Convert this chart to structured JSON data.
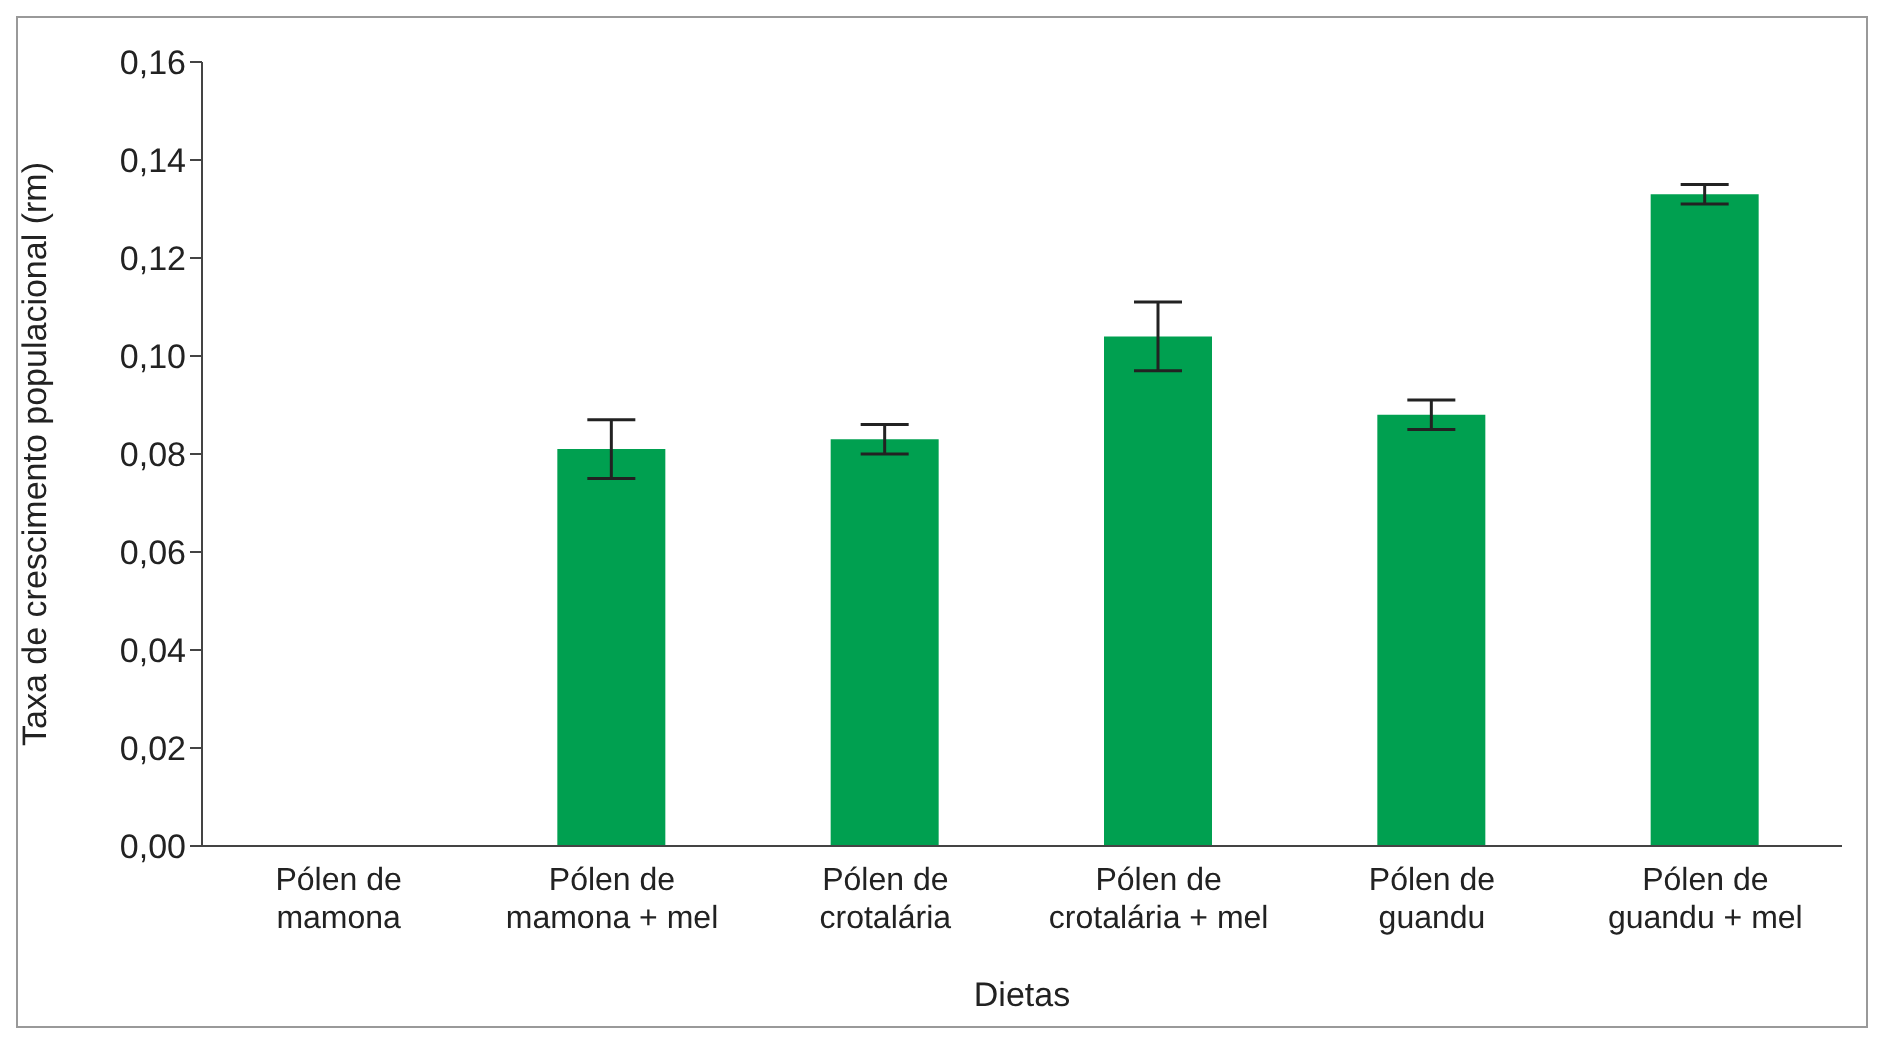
{
  "chart_data": {
    "type": "bar",
    "xlabel": "Dietas",
    "ylabel": "Taxa de crescimento populacional (rm)",
    "categories": [
      "Pólen de mamona",
      "Pólen de mamona + mel",
      "Pólen de crotalária",
      "Pólen de crotalária + mel",
      "Pólen de guandu",
      "Pólen de guandu + mel"
    ],
    "values": [
      0,
      0.081,
      0.083,
      0.104,
      0.088,
      0.133
    ],
    "errors": [
      null,
      0.006,
      0.003,
      0.007,
      0.003,
      0.002
    ],
    "color": "#00a050",
    "ylim": [
      0,
      0.16
    ],
    "yticks": [
      {
        "value": 0,
        "label": "0,00"
      },
      {
        "value": 0.02,
        "label": "0,02"
      },
      {
        "value": 0.04,
        "label": "0,04"
      },
      {
        "value": 0.06,
        "label": "0,06"
      },
      {
        "value": 0.08,
        "label": "0,08"
      },
      {
        "value": 0.1,
        "label": "0,10"
      },
      {
        "value": 0.12,
        "label": "0,12"
      },
      {
        "value": 0.14,
        "label": "0,14"
      },
      {
        "value": 0.16,
        "label": "0,16"
      }
    ],
    "grid": false
  }
}
